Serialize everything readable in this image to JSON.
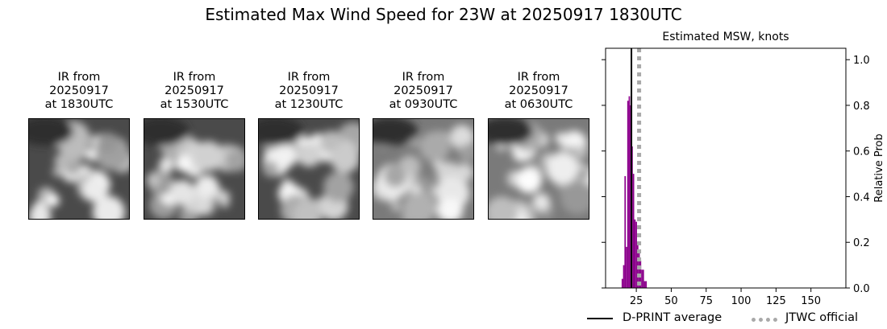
{
  "title": "Estimated Max Wind Speed for 23W at 20250917 1830UTC",
  "panels": [
    {
      "caption_l1": "IR from",
      "caption_l2": "20250917",
      "caption_l3": "at 1830UTC",
      "icon": "satellite-ir-image"
    },
    {
      "caption_l1": "IR from",
      "caption_l2": "20250917",
      "caption_l3": "at 1530UTC",
      "icon": "satellite-ir-image"
    },
    {
      "caption_l1": "IR from",
      "caption_l2": "20250917",
      "caption_l3": "at 1230UTC",
      "icon": "satellite-ir-image"
    },
    {
      "caption_l1": "IR from",
      "caption_l2": "20250917",
      "caption_l3": "at 0930UTC",
      "icon": "satellite-ir-image"
    },
    {
      "caption_l1": "IR from",
      "caption_l2": "20250917",
      "caption_l3": "at 0630UTC",
      "icon": "satellite-ir-image"
    }
  ],
  "chart_data": {
    "type": "bar",
    "title": "Estimated MSW, knots",
    "xlabel": "",
    "ylabel": "Relative Prob",
    "xlim": [
      3,
      175
    ],
    "ylim": [
      0,
      1.05
    ],
    "xticks": [
      25,
      50,
      75,
      100,
      125,
      150
    ],
    "yticks": [
      0.0,
      0.2,
      0.4,
      0.6,
      0.8,
      1.0
    ],
    "ytick_labels": [
      "0.0",
      "0.2",
      "0.4",
      "0.6",
      "0.8",
      "1.0"
    ],
    "left_yticks_unlabeled": [
      0.0,
      0.2,
      0.4,
      0.6,
      0.8,
      1.0
    ],
    "bar_color": "#8b008b",
    "bars": [
      {
        "x": 15,
        "y": 0.04
      },
      {
        "x": 16,
        "y": 0.1
      },
      {
        "x": 17,
        "y": 0.49
      },
      {
        "x": 18,
        "y": 0.18
      },
      {
        "x": 19,
        "y": 0.82
      },
      {
        "x": 20,
        "y": 0.84
      },
      {
        "x": 21,
        "y": 0.8
      },
      {
        "x": 22,
        "y": 0.62
      },
      {
        "x": 23,
        "y": 0.5
      },
      {
        "x": 24,
        "y": 0.3
      },
      {
        "x": 25,
        "y": 0.29
      },
      {
        "x": 26,
        "y": 0.2
      },
      {
        "x": 27,
        "y": 0.16
      },
      {
        "x": 28,
        "y": 0.12
      },
      {
        "x": 29,
        "y": 0.08
      },
      {
        "x": 30,
        "y": 0.08
      },
      {
        "x": 31,
        "y": 0.03
      },
      {
        "x": 32,
        "y": 0.03
      }
    ],
    "dprint_average": 21.5,
    "jtwc_official": 27,
    "legend": [
      {
        "label": "D-PRINT average",
        "color": "#000000",
        "style": "solid"
      },
      {
        "label": "JTWC official",
        "color": "#a9a9a9",
        "style": "dotted"
      }
    ],
    "legend_placement": "bottom"
  }
}
